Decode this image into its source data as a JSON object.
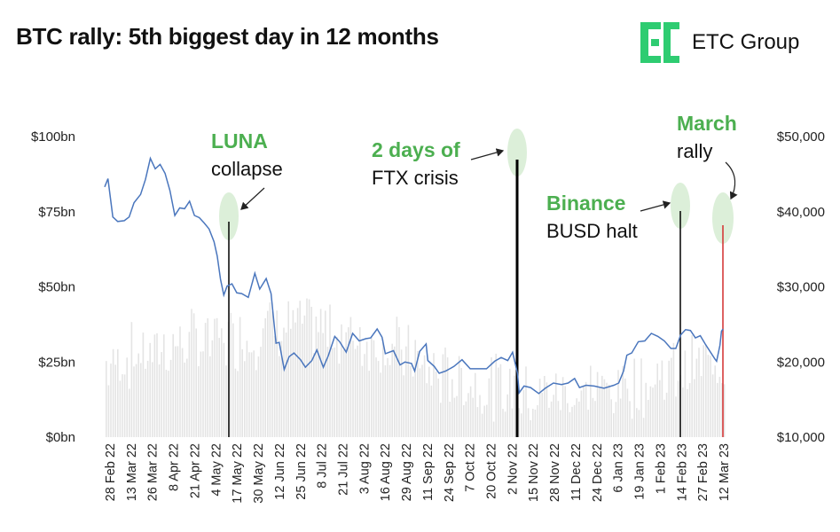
{
  "title": "BTC rally: 5th biggest day in 12 months",
  "logo": {
    "text": "ETC Group",
    "icon": "etc-group-logo-icon",
    "color": "#2ecc71"
  },
  "colors": {
    "price": "#4a76bd",
    "volume": "#e4e4e4",
    "annotation_green": "#4caf50",
    "marker": "#000000",
    "marker_latest": "#d32f2f",
    "bubble": "#dcefd9"
  },
  "chart_data": {
    "type": "line",
    "y_left": {
      "ticks": [
        "$0bn",
        "$25bn",
        "$50bn",
        "$75bn",
        "$100bn"
      ],
      "lim": [
        0,
        100
      ]
    },
    "y_right": {
      "ticks": [
        "$10,000",
        "$20,000",
        "$30,000",
        "$40,000",
        "$50,000"
      ],
      "lim": [
        10000,
        50000
      ]
    },
    "x_ticks": [
      "28 Feb 22",
      "13 Mar 22",
      "26 Mar 22",
      "8 Apr 22",
      "21 Apr 22",
      "4 May 22",
      "17 May 22",
      "30 May 22",
      "12 Jun 22",
      "25 Jun 22",
      "8 Jul 22",
      "21 Jul 22",
      "3 Aug 22",
      "16 Aug 22",
      "29 Aug 22",
      "11 Sep 22",
      "24 Sep 22",
      "7 Oct 22",
      "20 Oct 22",
      "2 Nov 22",
      "15 Nov 22",
      "28 Nov 22",
      "11 Dec 22",
      "24 Dec 22",
      "6 Jan 23",
      "19 Jan 23",
      "1 Feb 23",
      "14 Feb 23",
      "27 Feb 23",
      "12 Mar 23"
    ],
    "series": [
      {
        "axis": "right",
        "points": [
          [
            "2022-02-28",
            43300
          ],
          [
            "2022-03-02",
            44400
          ],
          [
            "2022-03-05",
            39300
          ],
          [
            "2022-03-08",
            38700
          ],
          [
            "2022-03-12",
            38800
          ],
          [
            "2022-03-15",
            39300
          ],
          [
            "2022-03-18",
            41200
          ],
          [
            "2022-03-22",
            42300
          ],
          [
            "2022-03-25",
            44300
          ],
          [
            "2022-03-28",
            47100
          ],
          [
            "2022-03-31",
            45700
          ],
          [
            "2022-04-03",
            46300
          ],
          [
            "2022-04-06",
            45100
          ],
          [
            "2022-04-09",
            42800
          ],
          [
            "2022-04-12",
            39500
          ],
          [
            "2022-04-15",
            40500
          ],
          [
            "2022-04-18",
            40400
          ],
          [
            "2022-04-21",
            41400
          ],
          [
            "2022-04-24",
            39500
          ],
          [
            "2022-04-27",
            39200
          ],
          [
            "2022-04-30",
            38500
          ],
          [
            "2022-05-03",
            37700
          ],
          [
            "2022-05-06",
            36000
          ],
          [
            "2022-05-08",
            34100
          ],
          [
            "2022-05-10",
            31000
          ],
          [
            "2022-05-12",
            28900
          ],
          [
            "2022-05-14",
            30100
          ],
          [
            "2022-05-17",
            30400
          ],
          [
            "2022-05-20",
            29200
          ],
          [
            "2022-05-23",
            29100
          ],
          [
            "2022-05-27",
            28600
          ],
          [
            "2022-05-31",
            31800
          ],
          [
            "2022-06-03",
            29700
          ],
          [
            "2022-06-07",
            31100
          ],
          [
            "2022-06-10",
            29100
          ],
          [
            "2022-06-13",
            22500
          ],
          [
            "2022-06-15",
            22600
          ],
          [
            "2022-06-18",
            19000
          ],
          [
            "2022-06-21",
            20700
          ],
          [
            "2022-06-24",
            21200
          ],
          [
            "2022-06-28",
            20300
          ],
          [
            "2022-07-01",
            19300
          ],
          [
            "2022-07-05",
            20200
          ],
          [
            "2022-07-08",
            21600
          ],
          [
            "2022-07-12",
            19300
          ],
          [
            "2022-07-15",
            20800
          ],
          [
            "2022-07-19",
            23400
          ],
          [
            "2022-07-22",
            22700
          ],
          [
            "2022-07-26",
            21300
          ],
          [
            "2022-07-30",
            23800
          ],
          [
            "2022-08-03",
            22800
          ],
          [
            "2022-08-07",
            23100
          ],
          [
            "2022-08-10",
            23200
          ],
          [
            "2022-08-14",
            24400
          ],
          [
            "2022-08-17",
            23300
          ],
          [
            "2022-08-19",
            21100
          ],
          [
            "2022-08-24",
            21500
          ],
          [
            "2022-08-28",
            19600
          ],
          [
            "2022-08-31",
            20000
          ],
          [
            "2022-09-04",
            19800
          ],
          [
            "2022-09-06",
            18800
          ],
          [
            "2022-09-09",
            21400
          ],
          [
            "2022-09-13",
            22400
          ],
          [
            "2022-09-14",
            20200
          ],
          [
            "2022-09-18",
            19400
          ],
          [
            "2022-09-21",
            18500
          ],
          [
            "2022-09-25",
            18800
          ],
          [
            "2022-09-30",
            19400
          ],
          [
            "2022-10-05",
            20300
          ],
          [
            "2022-10-10",
            19100
          ],
          [
            "2022-10-15",
            19100
          ],
          [
            "2022-10-20",
            19100
          ],
          [
            "2022-10-25",
            20100
          ],
          [
            "2022-10-29",
            20600
          ],
          [
            "2022-11-02",
            20200
          ],
          [
            "2022-11-05",
            21300
          ],
          [
            "2022-11-08",
            18500
          ],
          [
            "2022-11-09",
            15900
          ],
          [
            "2022-11-12",
            16800
          ],
          [
            "2022-11-16",
            16600
          ],
          [
            "2022-11-21",
            15800
          ],
          [
            "2022-11-25",
            16500
          ],
          [
            "2022-11-30",
            17200
          ],
          [
            "2022-12-05",
            17000
          ],
          [
            "2022-12-09",
            17200
          ],
          [
            "2022-12-13",
            17800
          ],
          [
            "2022-12-16",
            16600
          ],
          [
            "2022-12-20",
            16900
          ],
          [
            "2022-12-25",
            16800
          ],
          [
            "2022-12-31",
            16500
          ],
          [
            "2023-01-06",
            16900
          ],
          [
            "2023-01-09",
            17200
          ],
          [
            "2023-01-12",
            18800
          ],
          [
            "2023-01-14",
            20900
          ],
          [
            "2023-01-17",
            21200
          ],
          [
            "2023-01-21",
            22700
          ],
          [
            "2023-01-25",
            22800
          ],
          [
            "2023-01-29",
            23800
          ],
          [
            "2023-02-02",
            23400
          ],
          [
            "2023-02-06",
            22800
          ],
          [
            "2023-02-10",
            21800
          ],
          [
            "2023-02-13",
            21800
          ],
          [
            "2023-02-16",
            23600
          ],
          [
            "2023-02-19",
            24300
          ],
          [
            "2023-02-22",
            24200
          ],
          [
            "2023-02-25",
            23200
          ],
          [
            "2023-02-28",
            23500
          ],
          [
            "2023-03-03",
            22400
          ],
          [
            "2023-03-09",
            20400
          ],
          [
            "2023-03-10",
            20100
          ],
          [
            "2023-03-12",
            22200
          ],
          [
            "2023-03-13",
            24100
          ],
          [
            "2023-03-14",
            24400
          ]
        ]
      }
    ],
    "events": [
      {
        "date": "2022-05-10",
        "line1": "LUNA",
        "line2": "collapse"
      },
      {
        "date": "2022-11-08",
        "line1": "2 days of",
        "line2": "FTX crisis"
      },
      {
        "date": "2023-02-13",
        "line1": "Binance",
        "line2": "BUSD halt"
      },
      {
        "date": "2023-03-13",
        "line1": "March",
        "line2": "rally"
      }
    ]
  }
}
